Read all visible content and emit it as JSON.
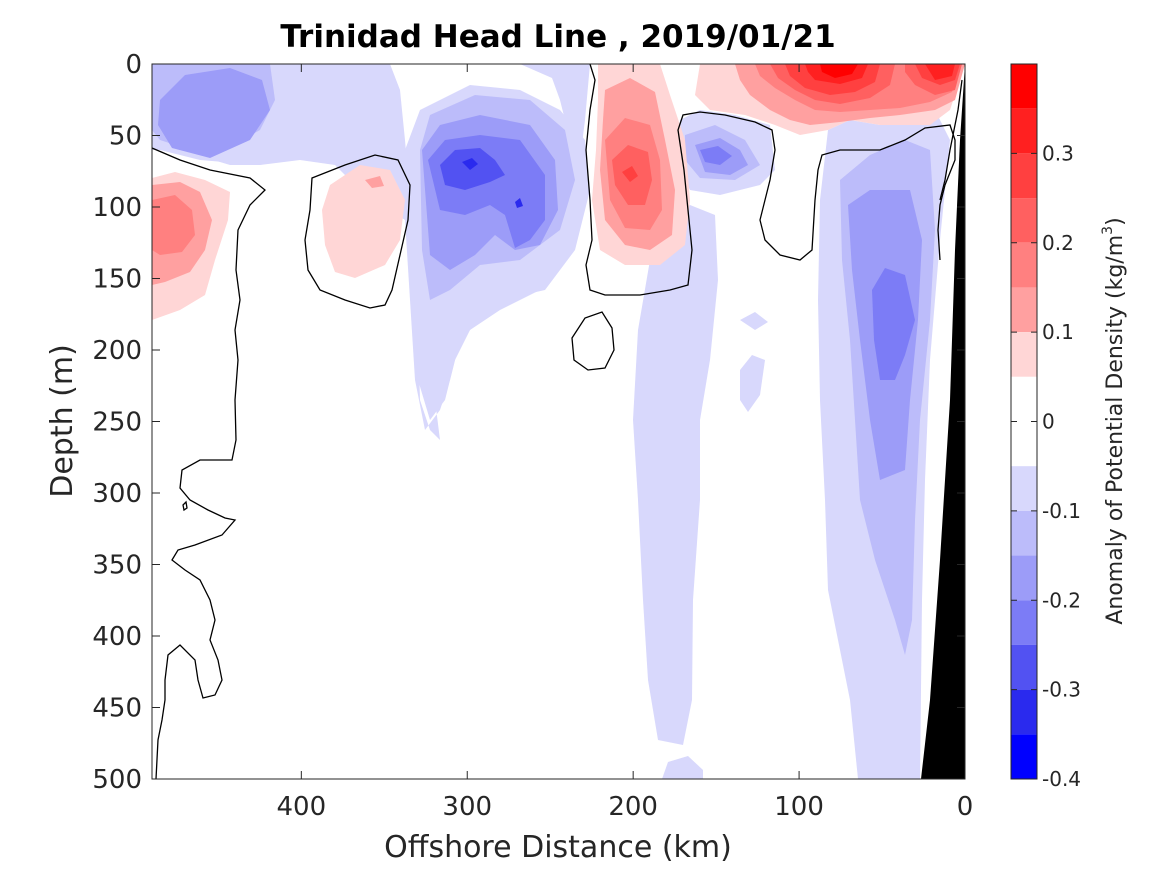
{
  "chart_data": {
    "type": "heatmap",
    "subtype": "filled-contour",
    "title": "Trinidad Head Line , 2019/01/21",
    "xlabel": "Offshore Distance (km)",
    "ylabel": "Depth (m)",
    "xlim": [
      490,
      0
    ],
    "ylim": [
      0,
      500
    ],
    "x_reversed": true,
    "y_reversed": true,
    "x_ticks": [
      400,
      300,
      200,
      100,
      0
    ],
    "y_ticks": [
      0,
      50,
      100,
      150,
      200,
      250,
      300,
      350,
      400,
      450,
      500
    ],
    "colorbar": {
      "label": "Anomaly of Potential Density (kg/m",
      "label_superscript": "3",
      "label_close": ")",
      "range": [
        -0.4,
        0.4
      ],
      "ticks": [
        "0.3",
        "0.2",
        "0.1",
        "0",
        "-0.1",
        "-0.2",
        "-0.3",
        "-0.4"
      ],
      "tick_values": [
        0.3,
        0.2,
        0.1,
        0,
        -0.1,
        -0.2,
        -0.3,
        -0.4
      ],
      "levels": [
        {
          "range": [
            0.35,
            0.4
          ],
          "color": "#ff0000"
        },
        {
          "range": [
            0.3,
            0.35
          ],
          "color": "#ff2020"
        },
        {
          "range": [
            0.25,
            0.3
          ],
          "color": "#ff4040"
        },
        {
          "range": [
            0.2,
            0.25
          ],
          "color": "#ff6060"
        },
        {
          "range": [
            0.15,
            0.2
          ],
          "color": "#ff8080"
        },
        {
          "range": [
            0.1,
            0.15
          ],
          "color": "#ffa0a0"
        },
        {
          "range": [
            0.05,
            0.1
          ],
          "color": "#ffd6d6"
        },
        {
          "range": [
            -0.05,
            0.05
          ],
          "color": "#ffffff"
        },
        {
          "range": [
            -0.1,
            -0.05
          ],
          "color": "#d8d8fc"
        },
        {
          "range": [
            -0.15,
            -0.1
          ],
          "color": "#bcbcfa"
        },
        {
          "range": [
            -0.2,
            -0.15
          ],
          "color": "#9c9cf8"
        },
        {
          "range": [
            -0.25,
            -0.2
          ],
          "color": "#7c7cf6"
        },
        {
          "range": [
            -0.3,
            -0.25
          ],
          "color": "#5252f2"
        },
        {
          "range": [
            -0.35,
            -0.3
          ],
          "color": "#2a2aee"
        },
        {
          "range": [
            -0.4,
            -0.35
          ],
          "color": "#0000ff"
        }
      ]
    },
    "features": [
      {
        "kind": "positive",
        "anomaly": 0.35,
        "x": [
          60,
          100
        ],
        "depth": [
          0,
          30
        ]
      },
      {
        "kind": "positive",
        "anomaly": 0.3,
        "x": [
          0,
          30
        ],
        "depth": [
          0,
          25
        ]
      },
      {
        "kind": "positive",
        "anomaly": 0.2,
        "x": [
          185,
          230
        ],
        "depth": [
          0,
          140
        ]
      },
      {
        "kind": "positive",
        "anomaly": 0.15,
        "x": [
          450,
          490
        ],
        "depth": [
          80,
          150
        ]
      },
      {
        "kind": "positive",
        "anomaly": 0.1,
        "x": [
          330,
          380
        ],
        "depth": [
          70,
          150
        ]
      },
      {
        "kind": "negative",
        "anomaly": -0.3,
        "x": [
          250,
          340
        ],
        "depth": [
          50,
          150
        ]
      },
      {
        "kind": "negative",
        "anomaly": -0.15,
        "x": [
          410,
          490
        ],
        "depth": [
          0,
          70
        ]
      },
      {
        "kind": "negative",
        "anomaly": -0.2,
        "x": [
          135,
          175
        ],
        "depth": [
          50,
          90
        ]
      },
      {
        "kind": "negative",
        "anomaly": -0.2,
        "x": [
          20,
          90
        ],
        "depth": [
          70,
          290
        ]
      },
      {
        "kind": "negative",
        "anomaly": -0.1,
        "x": [
          10,
          100
        ],
        "depth": [
          50,
          500
        ]
      },
      {
        "kind": "negative",
        "anomaly": -0.05,
        "x": [
          150,
          200
        ],
        "depth": [
          150,
          500
        ]
      },
      {
        "kind": "negative",
        "anomaly": -0.05,
        "x": [
          240,
          350
        ],
        "depth": [
          30,
          260
        ]
      }
    ],
    "zero_contour_color": "#000000",
    "bathymetry_color": "#000000",
    "grid": false
  }
}
